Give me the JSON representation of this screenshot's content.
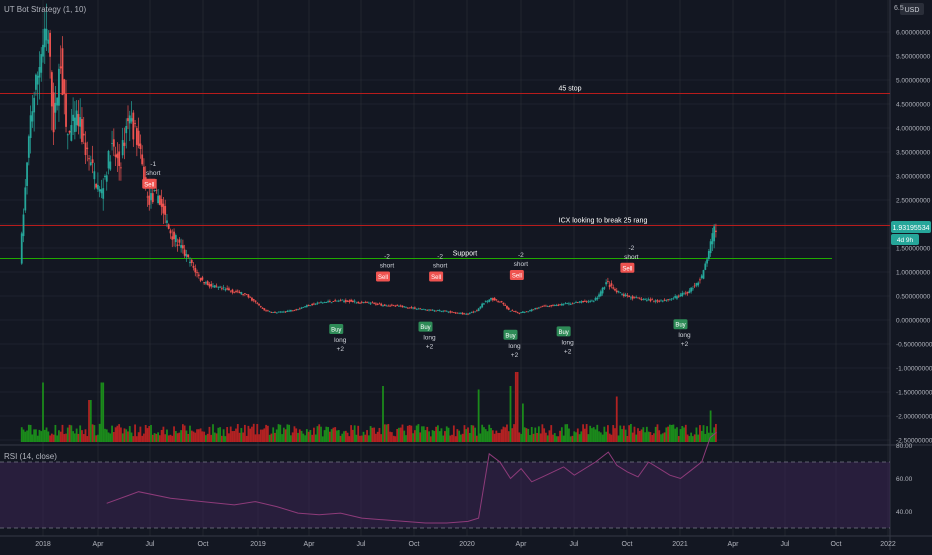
{
  "strategy_title": "UT Bot Strategy (1, 10)",
  "currency": "USD",
  "price_tag_top": "6.5",
  "last_price_label": "1.93195534",
  "countdown_label": "4d 9h",
  "colors": {
    "background": "#131722",
    "up": "#26a69a",
    "down": "#ef5350",
    "volume_up": "#1b8a1b",
    "volume_down": "#b22222",
    "grid": "#2a2e39",
    "text": "#b2b5be",
    "stop_line": "#b71c1c",
    "support_line": "#1faa00",
    "rsi_line": "#8e3b7a",
    "rsi_band": "#3a2552",
    "label_sell": "#ef5350",
    "label_buy": "#2e8b57"
  },
  "rsi": {
    "title": "RSI (14, close)",
    "ticks": [
      80,
      60,
      40
    ],
    "upper": 70,
    "lower": 30
  },
  "chart_data": {
    "type": "candlestick",
    "x_tick_labels": [
      "2018",
      "Apr",
      "Jul",
      "Oct",
      "2019",
      "Apr",
      "Jul",
      "Oct",
      "2020",
      "Apr",
      "Jul",
      "Oct",
      "2021",
      "Apr",
      "Jul",
      "Oct",
      "2022"
    ],
    "y_tick_labels": [
      "6.00000000",
      "5.50000000",
      "5.00000000",
      "4.50000000",
      "4.00000000",
      "3.50000000",
      "3.00000000",
      "2.50000000",
      "2.00000000",
      "1.50000000",
      "1.00000000",
      "0.50000000",
      "0.00000000",
      "-0.50000000",
      "-1.00000000",
      "-1.50000000",
      "-2.00000000",
      "-2.50000000"
    ],
    "ylim": [
      -2.55,
      6.65
    ],
    "price_path": [
      [
        2017.9,
        1.25
      ],
      [
        2017.95,
        4.2
      ],
      [
        2018.0,
        5.6
      ],
      [
        2018.03,
        6.0
      ],
      [
        2018.06,
        4.0
      ],
      [
        2018.09,
        5.5
      ],
      [
        2018.12,
        3.8
      ],
      [
        2018.17,
        4.2
      ],
      [
        2018.22,
        3.4
      ],
      [
        2018.28,
        2.6
      ],
      [
        2018.33,
        3.6
      ],
      [
        2018.37,
        3.2
      ],
      [
        2018.41,
        4.3
      ],
      [
        2018.45,
        3.8
      ],
      [
        2018.5,
        2.5
      ],
      [
        2018.55,
        2.6
      ],
      [
        2018.6,
        1.9
      ],
      [
        2018.65,
        1.55
      ],
      [
        2018.7,
        1.2
      ],
      [
        2018.75,
        0.85
      ],
      [
        2018.8,
        0.7
      ],
      [
        2018.85,
        0.65
      ],
      [
        2018.9,
        0.6
      ],
      [
        2018.95,
        0.55
      ],
      [
        2019.0,
        0.4
      ],
      [
        2019.05,
        0.2
      ],
      [
        2019.1,
        0.15
      ],
      [
        2019.15,
        0.18
      ],
      [
        2019.2,
        0.22
      ],
      [
        2019.25,
        0.3
      ],
      [
        2019.3,
        0.35
      ],
      [
        2019.35,
        0.38
      ],
      [
        2019.4,
        0.4
      ],
      [
        2019.45,
        0.4
      ],
      [
        2019.5,
        0.36
      ],
      [
        2019.55,
        0.35
      ],
      [
        2019.6,
        0.32
      ],
      [
        2019.65,
        0.3
      ],
      [
        2019.7,
        0.28
      ],
      [
        2019.75,
        0.25
      ],
      [
        2019.8,
        0.22
      ],
      [
        2019.85,
        0.2
      ],
      [
        2019.9,
        0.18
      ],
      [
        2019.95,
        0.15
      ],
      [
        2020.0,
        0.12
      ],
      [
        2020.05,
        0.2
      ],
      [
        2020.08,
        0.35
      ],
      [
        2020.12,
        0.45
      ],
      [
        2020.17,
        0.35
      ],
      [
        2020.2,
        0.2
      ],
      [
        2020.25,
        0.15
      ],
      [
        2020.3,
        0.2
      ],
      [
        2020.35,
        0.28
      ],
      [
        2020.4,
        0.3
      ],
      [
        2020.45,
        0.32
      ],
      [
        2020.5,
        0.35
      ],
      [
        2020.55,
        0.38
      ],
      [
        2020.6,
        0.4
      ],
      [
        2020.63,
        0.55
      ],
      [
        2020.66,
        0.8
      ],
      [
        2020.7,
        0.6
      ],
      [
        2020.75,
        0.5
      ],
      [
        2020.8,
        0.45
      ],
      [
        2020.85,
        0.42
      ],
      [
        2020.9,
        0.4
      ],
      [
        2020.95,
        0.42
      ],
      [
        2021.0,
        0.5
      ],
      [
        2021.05,
        0.6
      ],
      [
        2021.08,
        0.75
      ],
      [
        2021.11,
        0.9
      ],
      [
        2021.14,
        1.4
      ],
      [
        2021.17,
        1.93
      ]
    ],
    "series": [
      {
        "name": "45 stop",
        "values": [
          4.72
        ]
      },
      {
        "name": "ICX looking to break 25 rang",
        "values": [
          1.97
        ]
      },
      {
        "name": "Support",
        "values": [
          1.28
        ]
      }
    ],
    "annotations": [
      "45 stop",
      "ICX looking to break 25 rang",
      "Support"
    ],
    "signals": [
      {
        "kind": "sell",
        "tag": "Sell",
        "x": 2018.5,
        "price": 2.65,
        "count": "-1",
        "side": "short"
      },
      {
        "kind": "buy",
        "tag": "Buy",
        "x": 2019.38,
        "price": 0.0,
        "side": "long",
        "count": "+2"
      },
      {
        "kind": "sell",
        "tag": "Sell",
        "x": 2019.6,
        "price": 0.72,
        "count": "-2",
        "side": "short"
      },
      {
        "kind": "buy",
        "tag": "Buy",
        "x": 2019.8,
        "price": 0.05,
        "side": "long",
        "count": "+2"
      },
      {
        "kind": "sell",
        "tag": "Sell",
        "x": 2019.85,
        "price": 0.72,
        "count": "-2",
        "side": "short"
      },
      {
        "kind": "buy",
        "tag": "Buy",
        "x": 2020.2,
        "price": -0.12,
        "side": "long",
        "count": "+2"
      },
      {
        "kind": "sell",
        "tag": "Sell",
        "x": 2020.23,
        "price": 0.75,
        "count": "-2",
        "side": "short"
      },
      {
        "kind": "buy",
        "tag": "Buy",
        "x": 2020.45,
        "price": -0.05,
        "side": "long",
        "count": "+2"
      },
      {
        "kind": "sell",
        "tag": "Sell",
        "x": 2020.75,
        "price": 0.9,
        "count": "-2",
        "side": "short"
      },
      {
        "kind": "buy",
        "tag": "Buy",
        "x": 2021.0,
        "price": 0.1,
        "side": "long",
        "count": "+2"
      }
    ],
    "volume_spikes": [
      [
        2018.0,
        0.85
      ],
      [
        2018.22,
        0.6
      ],
      [
        2018.28,
        0.85
      ],
      [
        2019.6,
        0.8
      ],
      [
        2020.05,
        0.75
      ],
      [
        2020.2,
        0.8
      ],
      [
        2020.23,
        1.0
      ],
      [
        2020.26,
        0.55
      ],
      [
        2020.7,
        0.65
      ],
      [
        2021.14,
        0.45
      ]
    ],
    "rsi_path": [
      [
        2018.3,
        45
      ],
      [
        2018.45,
        52
      ],
      [
        2018.6,
        48
      ],
      [
        2018.75,
        46
      ],
      [
        2018.9,
        44
      ],
      [
        2019.0,
        46
      ],
      [
        2019.1,
        43
      ],
      [
        2019.2,
        39
      ],
      [
        2019.3,
        38
      ],
      [
        2019.4,
        39
      ],
      [
        2019.5,
        36
      ],
      [
        2019.6,
        35
      ],
      [
        2019.7,
        34
      ],
      [
        2019.8,
        33
      ],
      [
        2019.9,
        33
      ],
      [
        2020.0,
        34
      ],
      [
        2020.05,
        36
      ],
      [
        2020.1,
        75
      ],
      [
        2020.15,
        70
      ],
      [
        2020.2,
        60
      ],
      [
        2020.25,
        66
      ],
      [
        2020.3,
        58
      ],
      [
        2020.35,
        61
      ],
      [
        2020.4,
        64
      ],
      [
        2020.45,
        67
      ],
      [
        2020.5,
        62
      ],
      [
        2020.6,
        70
      ],
      [
        2020.66,
        76
      ],
      [
        2020.7,
        68
      ],
      [
        2020.75,
        64
      ],
      [
        2020.8,
        61
      ],
      [
        2020.85,
        70
      ],
      [
        2020.9,
        66
      ],
      [
        2020.95,
        62
      ],
      [
        2021.0,
        60
      ],
      [
        2021.05,
        65
      ],
      [
        2021.1,
        70
      ],
      [
        2021.14,
        85
      ],
      [
        2021.17,
        88
      ]
    ]
  }
}
